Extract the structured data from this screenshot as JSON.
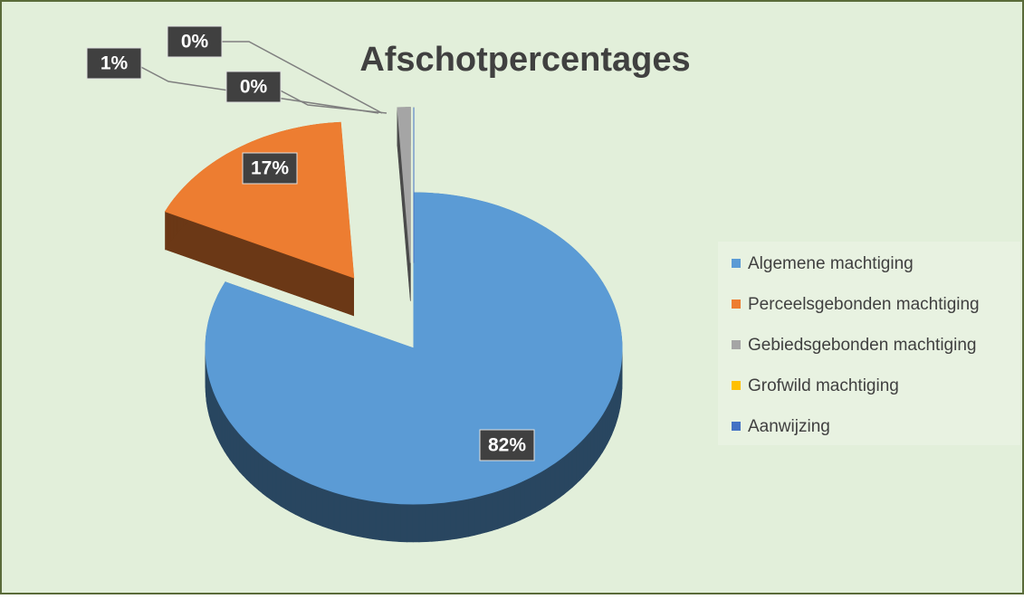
{
  "chart_data": {
    "type": "pie",
    "title": "Afschotpercentages",
    "categories": [
      "Algemene machtiging",
      "Perceelsgebonden machtiging",
      "Gebiedsgebonden machtiging",
      "Grofwild machtiging",
      "Aanwijzing"
    ],
    "values": [
      82,
      17,
      1,
      0,
      0
    ],
    "value_labels": [
      "82%",
      "17%",
      "1%",
      "0%",
      "0%"
    ],
    "colors": [
      "#5b9bd5",
      "#ed7d31",
      "#a5a5a5",
      "#ffc000",
      "#4472c4"
    ],
    "legend": "right"
  }
}
